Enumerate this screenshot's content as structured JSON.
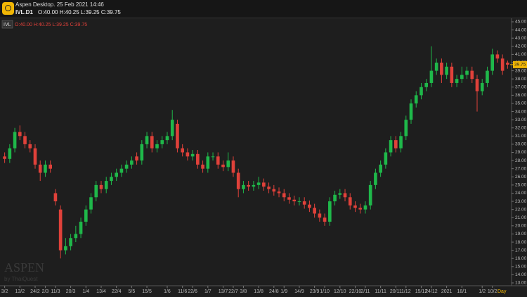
{
  "header": {
    "title": "Aspen Desktop. 25 Feb 2021 14:46",
    "symbol": "IVL.D1",
    "ohlc": "O:40.00 H:40.25 L:39.25 C:39.75"
  },
  "watermark": {
    "brand": "ASPEN",
    "by": "by ThaiQuest"
  },
  "chart_data": {
    "type": "candlestick",
    "legend": {
      "name": "IVL",
      "ohlc": "O:40.00 H:40.25 L:39.25 C:39.75"
    },
    "timeframe": "Day",
    "last_price_label": "39.75",
    "up_color": "#1fb84a",
    "down_color": "#e0413a",
    "categories": [
      "3/2",
      null,
      null,
      "13/2",
      null,
      null,
      "24/2",
      null,
      "2/3",
      null,
      "11/3",
      null,
      null,
      "20/3",
      null,
      null,
      "1/4",
      null,
      null,
      "13/4",
      null,
      null,
      "22/4",
      null,
      null,
      "5/5",
      null,
      null,
      "15/5",
      null,
      null,
      null,
      "1/6",
      null,
      null,
      "11/6",
      null,
      "22/6",
      null,
      null,
      "1/7",
      null,
      null,
      "13/7",
      null,
      "22/7",
      null,
      "3/8",
      null,
      null,
      "13/8",
      null,
      null,
      "24/8",
      null,
      "1/9",
      null,
      null,
      "14/9",
      null,
      null,
      "23/9",
      null,
      "1/10",
      null,
      null,
      "12/10",
      null,
      null,
      "22/10",
      null,
      "2/11",
      null,
      null,
      "11/11",
      null,
      null,
      "20/11",
      null,
      "1/12",
      null,
      null,
      "15/12",
      null,
      "24/12",
      null,
      null,
      "2021",
      null,
      null,
      "18/1",
      null,
      null,
      null,
      "1/2",
      null,
      "10/2",
      null,
      null,
      null
    ],
    "open": [
      28.5,
      28.2,
      29.5,
      31.5,
      31,
      30,
      29.5,
      27.5,
      26.5,
      27.5,
      24,
      22,
      17,
      17.5,
      18.5,
      19,
      20.5,
      22,
      23.5,
      25,
      24.5,
      25.5,
      26,
      26.5,
      27,
      27.5,
      28.5,
      28,
      30,
      31,
      29.5,
      30,
      30.5,
      31,
      32.5,
      29.5,
      29,
      28.5,
      28.8,
      27.5,
      27,
      28.5,
      28.5,
      27.5,
      27.2,
      28,
      26.5,
      24.5,
      25,
      24.8,
      25,
      25.3,
      24.8,
      24.5,
      24.2,
      24,
      23.5,
      23.2,
      23,
      23,
      22.6,
      22.2,
      21.5,
      21,
      20.5,
      23,
      23.8,
      24,
      23.5,
      22.5,
      22.2,
      22,
      22.5,
      25,
      26.5,
      27.5,
      29,
      30.5,
      29.5,
      31,
      33,
      35,
      36,
      37,
      37.5,
      39,
      40,
      38.5,
      39.5,
      37.5,
      38,
      38.5,
      39,
      38,
      36.5,
      37.5,
      39,
      41,
      40.5,
      40
    ],
    "high": [
      29,
      30,
      32,
      32.3,
      31.5,
      30.5,
      30,
      28,
      28,
      28,
      24.5,
      22.5,
      18.5,
      19,
      20,
      21,
      22.5,
      24,
      25.5,
      25.5,
      26,
      26.5,
      27,
      27.5,
      28,
      28.5,
      29,
      30.5,
      31.5,
      31.5,
      30.5,
      31,
      31.5,
      34.2,
      33,
      30,
      29.5,
      29.3,
      29.3,
      28,
      29,
      29,
      29,
      28,
      29,
      28.5,
      27,
      25.5,
      25.5,
      25.5,
      26,
      25.8,
      25.3,
      25,
      24.7,
      24.5,
      24,
      23.7,
      23.5,
      23.5,
      23.1,
      22.7,
      22,
      21.5,
      23.5,
      24.3,
      24.5,
      24.5,
      24,
      23,
      22.7,
      23,
      25.5,
      27,
      28,
      29.5,
      31,
      31,
      31.5,
      33.5,
      35.5,
      36.5,
      37.5,
      38,
      42,
      40.5,
      40.5,
      40,
      40,
      38.5,
      39.5,
      39.5,
      39.5,
      38.5,
      38,
      39.5,
      41.7,
      41.5,
      41,
      40.25
    ],
    "low": [
      27.7,
      27.7,
      29,
      30.5,
      29.5,
      29,
      27,
      25.5,
      26,
      26.5,
      22.5,
      16,
      16.5,
      17,
      18,
      18.5,
      20,
      21.5,
      23,
      24,
      24,
      25,
      25.5,
      26,
      26.5,
      27,
      27.5,
      27.5,
      29.5,
      29,
      29,
      29.5,
      30,
      30.5,
      29,
      28.5,
      28,
      28,
      27,
      26.5,
      26.5,
      28,
      27,
      26.7,
      26.7,
      26,
      23.5,
      24,
      24.3,
      24.3,
      24.5,
      24.3,
      24,
      23.7,
      23.5,
      23,
      22.7,
      22.5,
      22.5,
      22.1,
      21.7,
      21,
      20.5,
      20,
      20,
      22.5,
      23.3,
      23,
      22,
      21.7,
      21.5,
      21.5,
      22,
      24.5,
      26,
      27,
      28.5,
      29,
      29,
      30.5,
      32.5,
      34.5,
      35.5,
      36.5,
      37,
      38.5,
      37.5,
      38,
      37,
      37,
      37.5,
      38,
      37.5,
      34,
      36,
      37,
      38.5,
      40,
      38.5,
      39.25
    ],
    "close": [
      28.2,
      29.5,
      31.5,
      31,
      30,
      29.5,
      27.5,
      26.5,
      27.5,
      27,
      23,
      17,
      17.5,
      18.5,
      19,
      20.5,
      22,
      23.5,
      25,
      24.5,
      25.5,
      26,
      26.5,
      27,
      27.5,
      28,
      28,
      30,
      31,
      29.5,
      30,
      30.5,
      31,
      33,
      29.5,
      29,
      28.5,
      28.8,
      27.5,
      27,
      28.5,
      28.5,
      27.5,
      27.2,
      28,
      26.5,
      24.5,
      25,
      24.8,
      25,
      25.3,
      24.8,
      24.5,
      24.2,
      24,
      23.5,
      23.2,
      23,
      23,
      22.6,
      22.2,
      21.5,
      21,
      20.5,
      23,
      23.8,
      24,
      23.5,
      22.5,
      22.2,
      22,
      22.5,
      25,
      26.5,
      27.5,
      29,
      30.5,
      29.5,
      31,
      33,
      35,
      36,
      37,
      37.5,
      39,
      40,
      38.5,
      39.5,
      37.5,
      38,
      38.5,
      39,
      38,
      36.5,
      37.5,
      39,
      41,
      40.5,
      39,
      39.75
    ],
    "ylim": [
      13,
      45
    ],
    "yticks": [
      {
        "value": 13,
        "label": "13.00"
      },
      {
        "value": 14,
        "label": "14.00"
      },
      {
        "value": 15,
        "label": "15.00"
      },
      {
        "value": 16,
        "label": "16.00"
      },
      {
        "value": 17,
        "label": "17.00"
      },
      {
        "value": 18,
        "label": "18.00"
      },
      {
        "value": 19,
        "label": "19.00"
      },
      {
        "value": 20,
        "label": "20.00"
      },
      {
        "value": 21,
        "label": "21.00"
      },
      {
        "value": 22,
        "label": "22.00"
      },
      {
        "value": 23,
        "label": "23.00"
      },
      {
        "value": 24,
        "label": "24.00"
      },
      {
        "value": 25,
        "label": "25.00"
      },
      {
        "value": 26,
        "label": "26.00"
      },
      {
        "value": 27,
        "label": "27.00"
      },
      {
        "value": 28,
        "label": "28.00"
      },
      {
        "value": 29,
        "label": "29.00"
      },
      {
        "value": 30,
        "label": "30.00"
      },
      {
        "value": 31,
        "label": "31.00"
      },
      {
        "value": 32,
        "label": "32.00"
      },
      {
        "value": 33,
        "label": "33.00"
      },
      {
        "value": 34,
        "label": "34.00"
      },
      {
        "value": 35,
        "label": "35.00"
      },
      {
        "value": 36,
        "label": "36.00"
      },
      {
        "value": 37,
        "label": "37.00"
      },
      {
        "value": 38,
        "label": "38.00"
      },
      {
        "value": 39,
        "label": "39.00"
      },
      {
        "value": 40,
        "label": "40.00"
      },
      {
        "value": 41,
        "label": "41.00"
      },
      {
        "value": 42,
        "label": "42.00"
      },
      {
        "value": 43,
        "label": "43.00"
      },
      {
        "value": 44,
        "label": "44.00"
      },
      {
        "value": 45,
        "label": "45.00"
      }
    ]
  }
}
